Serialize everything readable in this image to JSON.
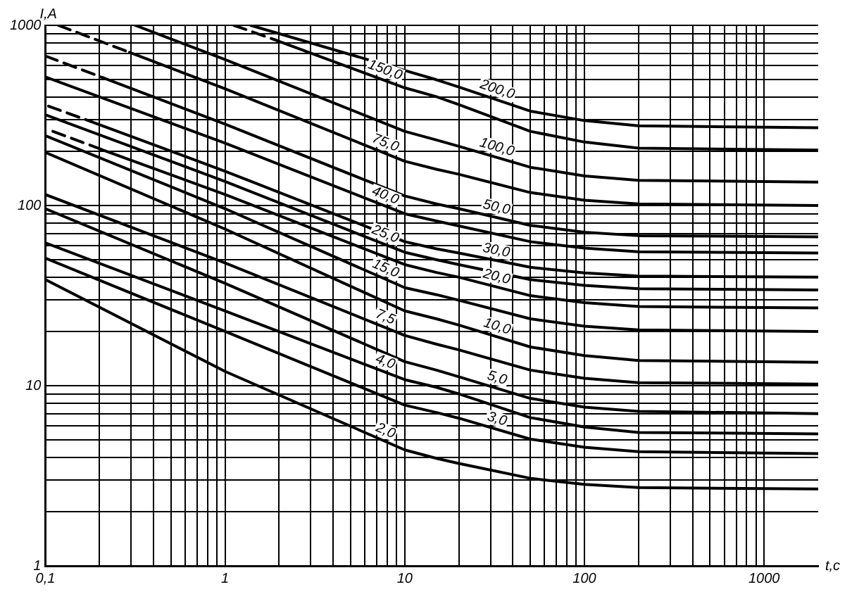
{
  "chart_data": {
    "type": "line",
    "xlabel": "t,c",
    "ylabel": "I,A",
    "log": "xy",
    "grid": true,
    "legend": false,
    "marker": "none",
    "xlim": [
      0.1,
      2000
    ],
    "ylim": [
      1,
      1000
    ],
    "xticks": [
      {
        "value": 0.1,
        "label": "0,1"
      },
      {
        "value": 0.2,
        "label": null
      },
      {
        "value": 0.3,
        "label": null
      },
      {
        "value": 0.4,
        "label": null
      },
      {
        "value": 0.5,
        "label": null
      },
      {
        "value": 0.6,
        "label": null
      },
      {
        "value": 0.7,
        "label": null
      },
      {
        "value": 0.8,
        "label": null
      },
      {
        "value": 0.9,
        "label": null
      },
      1,
      {
        "value": 2,
        "label": null
      },
      {
        "value": 3,
        "label": null
      },
      {
        "value": 4,
        "label": null
      },
      {
        "value": 5,
        "label": null
      },
      {
        "value": 6,
        "label": null
      },
      {
        "value": 7,
        "label": null
      },
      {
        "value": 8,
        "label": null
      },
      {
        "value": 9,
        "label": null
      },
      10,
      {
        "value": 20,
        "label": null
      },
      {
        "value": 30,
        "label": null
      },
      {
        "value": 40,
        "label": null
      },
      {
        "value": 50,
        "label": null
      },
      {
        "value": 60,
        "label": null
      },
      {
        "value": 70,
        "label": null
      },
      {
        "value": 80,
        "label": null
      },
      {
        "value": 90,
        "label": null
      },
      100,
      {
        "value": 200,
        "label": null
      },
      {
        "value": 300,
        "label": null
      },
      {
        "value": 400,
        "label": null
      },
      {
        "value": 500,
        "label": null
      },
      {
        "value": 600,
        "label": null
      },
      {
        "value": 700,
        "label": null
      },
      {
        "value": 800,
        "label": null
      },
      {
        "value": 900,
        "label": null
      },
      1000
    ],
    "yticks": [
      1,
      {
        "value": 2,
        "label": null
      },
      {
        "value": 3,
        "label": null
      },
      {
        "value": 4,
        "label": null
      },
      {
        "value": 5,
        "label": null
      },
      {
        "value": 6,
        "label": null
      },
      {
        "value": 7,
        "label": null
      },
      {
        "value": 8,
        "label": null
      },
      {
        "value": 9,
        "label": null
      },
      10,
      {
        "value": 20,
        "label": null
      },
      {
        "value": 30,
        "label": null
      },
      {
        "value": 40,
        "label": null
      },
      {
        "value": 50,
        "label": null
      },
      {
        "value": 60,
        "label": null
      },
      {
        "value": 70,
        "label": null
      },
      {
        "value": 80,
        "label": null
      },
      {
        "value": 90,
        "label": null
      },
      100,
      {
        "value": 200,
        "label": null
      },
      {
        "value": 300,
        "label": null
      },
      {
        "value": 400,
        "label": null
      },
      {
        "value": 500,
        "label": null
      },
      {
        "value": 600,
        "label": null
      },
      {
        "value": 700,
        "label": null
      },
      {
        "value": 800,
        "label": null
      },
      {
        "value": 900,
        "label": null
      },
      1000
    ],
    "series": [
      {
        "name": "2,0",
        "color": "#000000",
        "line_style": "solid",
        "x": [
          0.1,
          1,
          10,
          15,
          20,
          50,
          100,
          200,
          2000
        ],
        "values": [
          38.8,
          12,
          4.4,
          3.95,
          3.7,
          3.06,
          2.83,
          2.72,
          2.67
        ]
      },
      {
        "name": "3,0",
        "color": "#000000",
        "line_style": "solid",
        "x": [
          0.1,
          1,
          10,
          15,
          20,
          50,
          100,
          200,
          2000
        ],
        "values": [
          51,
          20,
          7.8,
          7.1,
          6.6,
          5.05,
          4.55,
          4.3,
          4.2
        ]
      },
      {
        "name": "4,0",
        "color": "#000000",
        "line_style": "solid",
        "x": [
          0.1,
          1,
          10,
          15,
          20,
          50,
          100,
          200,
          2000
        ],
        "values": [
          62,
          26,
          10.8,
          9.8,
          9.0,
          6.65,
          5.9,
          5.5,
          5.4
        ]
      },
      {
        "name": "5,0",
        "color": "#000000",
        "line_style": "solid",
        "x": [
          0.1,
          1,
          10,
          15,
          20,
          50,
          100,
          200,
          2000
        ],
        "values": [
          96,
          37,
          13.6,
          12.2,
          11.2,
          8.5,
          7.6,
          7.2,
          7.0
        ]
      },
      {
        "name": "7,5",
        "color": "#000000",
        "line_style": "solid",
        "x": [
          0.1,
          1,
          10,
          15,
          20,
          50,
          100,
          200,
          2000
        ],
        "values": [
          115,
          48,
          19,
          17,
          15.8,
          12.2,
          11,
          10.4,
          10.2
        ]
      },
      {
        "name": "10,0",
        "color": "#000000",
        "line_style": "solid",
        "x": [
          0.1,
          1,
          10,
          15,
          20,
          50,
          100,
          200,
          2000
        ],
        "values": [
          197,
          74,
          26,
          23.5,
          21.7,
          16.4,
          14.7,
          13.8,
          13.5
        ]
      },
      {
        "name": "15,0",
        "color": "#000000",
        "line_style": "solid",
        "x": [
          0.1,
          1,
          10,
          15,
          20,
          50,
          100,
          200,
          2000
        ],
        "values": [
          244,
          96,
          35,
          32,
          29.8,
          23.5,
          21.4,
          20.4,
          20
        ]
      },
      {
        "name": "20,0",
        "color": "#000000",
        "line_style": "solid",
        "x": [
          0.21,
          1,
          10,
          15,
          20,
          50,
          100,
          200,
          2000
        ],
        "values": [
          203,
          115,
          47,
          42.5,
          40,
          31.6,
          28.9,
          27.5,
          27
        ]
      },
      {
        "color": "#000000",
        "line_style": "dashed",
        "x": [
          0.11,
          0.21
        ],
        "values": [
          258,
          203
        ]
      },
      {
        "name": "25,0",
        "color": "#000000",
        "line_style": "solid",
        "x": [
          0.1,
          1,
          10,
          15,
          20,
          50,
          100,
          200,
          2000
        ],
        "values": [
          319,
          136,
          55,
          50,
          47,
          38.8,
          36,
          34.5,
          34
        ]
      },
      {
        "name": "30,0",
        "color": "#000000",
        "line_style": "solid",
        "x": [
          0.18,
          1,
          10,
          15,
          20,
          50,
          100,
          200,
          2000
        ],
        "values": [
          292,
          155,
          63,
          57.5,
          54.5,
          45.4,
          42.3,
          40.6,
          40
        ]
      },
      {
        "color": "#000000",
        "line_style": "dashed",
        "x": [
          0.104,
          0.18
        ],
        "values": [
          356,
          292
        ]
      },
      {
        "name": "40,0",
        "color": "#000000",
        "line_style": "solid",
        "x": [
          0.1,
          1,
          10,
          15,
          20,
          50,
          100,
          200,
          2000
        ],
        "values": [
          517,
          222,
          90,
          82,
          77,
          63,
          58,
          55.3,
          54.5
        ]
      },
      {
        "name": "50,0",
        "color": "#000000",
        "line_style": "solid",
        "x": [
          0.21,
          1,
          10,
          15,
          20,
          50,
          100,
          200,
          2000
        ],
        "values": [
          511,
          283,
          113,
          102,
          96,
          77.6,
          71,
          68,
          67
        ]
      },
      {
        "color": "#000000",
        "line_style": "dashed",
        "x": [
          0.1,
          0.21
        ],
        "values": [
          676,
          511
        ]
      },
      {
        "name": "75,0",
        "color": "#000000",
        "line_style": "solid",
        "x": [
          0.294,
          1,
          10,
          15,
          20,
          50,
          100,
          200,
          2000
        ],
        "values": [
          708,
          445,
          176,
          159,
          149,
          118,
          107,
          102,
          100
        ]
      },
      {
        "color": "#000000",
        "line_style": "dashed",
        "x": [
          0.118,
          0.294
        ],
        "values": [
          1000,
          708
        ]
      },
      {
        "name": "100,0",
        "color": "#000000",
        "line_style": "solid",
        "x": [
          0.316,
          1,
          10,
          15,
          20,
          50,
          100,
          200,
          2000
        ],
        "values": [
          1000,
          646,
          258,
          231,
          213,
          163,
          146,
          138,
          135
        ]
      },
      {
        "name": "150,0",
        "color": "#000000",
        "line_style": "solid",
        "x": [
          1.93,
          10,
          15,
          20,
          50,
          100,
          200,
          2000
        ],
        "values": [
          826,
          450,
          402,
          363,
          258,
          225,
          208,
          203
        ]
      },
      {
        "color": "#000000",
        "line_style": "dashed",
        "x": [
          1.12,
          1.93
        ],
        "values": [
          1000,
          826
        ]
      },
      {
        "name": "200,0",
        "color": "#000000",
        "line_style": "solid",
        "x": [
          1.39,
          10,
          15,
          20,
          50,
          100,
          200,
          2000
        ],
        "values": [
          1000,
          562,
          499,
          455,
          334,
          296,
          277,
          270
        ]
      }
    ]
  }
}
